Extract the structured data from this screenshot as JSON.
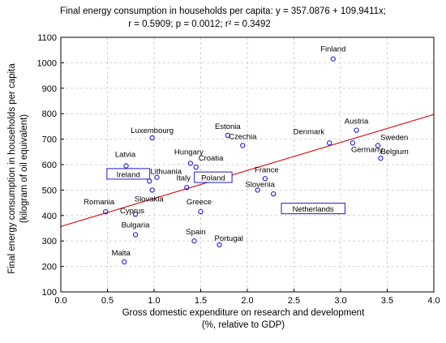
{
  "chart_data": {
    "type": "scatter",
    "title_lines": [
      "Final energy consumption in households per capita:  y = 357.0876 + 109.9411x;",
      "r = 0.5909; p = 0.0012; r² = 0.3492"
    ],
    "xlabel_lines": [
      "Gross domestic expenditure on research and development",
      "(%, relative to GDP)"
    ],
    "ylabel_lines": [
      "Final energy consumption in households per capita",
      "(kilogram of oil equivalent)"
    ],
    "xlim": [
      0.0,
      4.0
    ],
    "ylim": [
      100,
      1100
    ],
    "x_ticks": [
      "0.0",
      "0.5",
      "1.0",
      "1.5",
      "2.0",
      "2.5",
      "3.0",
      "3.5",
      "4.0"
    ],
    "y_ticks": [
      "100",
      "200",
      "300",
      "400",
      "500",
      "600",
      "700",
      "800",
      "900",
      "1000",
      "1100"
    ],
    "grid": true,
    "regression": {
      "intercept": 357.0876,
      "slope": 109.9411,
      "color": "#d41a1a"
    },
    "marker_color": "#1a1ad6",
    "points": [
      {
        "label": "Finland",
        "x": 2.92,
        "y": 1015,
        "boxed": false
      },
      {
        "label": "Austria",
        "x": 3.17,
        "y": 735,
        "boxed": false
      },
      {
        "label": "Denmark",
        "x": 2.88,
        "y": 685,
        "boxed": false
      },
      {
        "label": "Sweden",
        "x": 3.4,
        "y": 675,
        "boxed": false
      },
      {
        "label": "Germany",
        "x": 3.13,
        "y": 685,
        "boxed": false
      },
      {
        "label": "Belgium",
        "x": 3.43,
        "y": 625,
        "boxed": false
      },
      {
        "label": "Estonia",
        "x": 1.79,
        "y": 715,
        "boxed": false
      },
      {
        "label": "Czechia",
        "x": 1.95,
        "y": 675,
        "boxed": false
      },
      {
        "label": "Luxembourg",
        "x": 0.98,
        "y": 705,
        "boxed": false
      },
      {
        "label": "Hungary",
        "x": 1.39,
        "y": 605,
        "boxed": false
      },
      {
        "label": "Croatia",
        "x": 1.45,
        "y": 590,
        "boxed": false
      },
      {
        "label": "Poland",
        "x": 1.46,
        "y": 560,
        "boxed": true
      },
      {
        "label": "Latvia",
        "x": 0.7,
        "y": 595,
        "boxed": false
      },
      {
        "label": "Lithuania",
        "x": 1.03,
        "y": 550,
        "boxed": false
      },
      {
        "label": "Ireland",
        "x": 0.95,
        "y": 535,
        "boxed": true
      },
      {
        "label": "Italy",
        "x": 1.35,
        "y": 510,
        "boxed": false
      },
      {
        "label": "France",
        "x": 2.19,
        "y": 545,
        "boxed": false
      },
      {
        "label": "Slovenia",
        "x": 2.11,
        "y": 500,
        "boxed": false
      },
      {
        "label": "Netherlands",
        "x": 2.28,
        "y": 485,
        "boxed": true
      },
      {
        "label": "Slovakia",
        "x": 0.98,
        "y": 500,
        "boxed": false
      },
      {
        "label": "Romania",
        "x": 0.48,
        "y": 415,
        "boxed": false
      },
      {
        "label": "Cyprus",
        "x": 0.8,
        "y": 405,
        "boxed": false
      },
      {
        "label": "Greece",
        "x": 1.5,
        "y": 415,
        "boxed": false
      },
      {
        "label": "Bulgaria",
        "x": 0.8,
        "y": 325,
        "boxed": false
      },
      {
        "label": "Spain",
        "x": 1.43,
        "y": 300,
        "boxed": false
      },
      {
        "label": "Portugal",
        "x": 1.7,
        "y": 285,
        "boxed": false
      },
      {
        "label": "Malta",
        "x": 0.68,
        "y": 218,
        "boxed": false
      }
    ]
  }
}
